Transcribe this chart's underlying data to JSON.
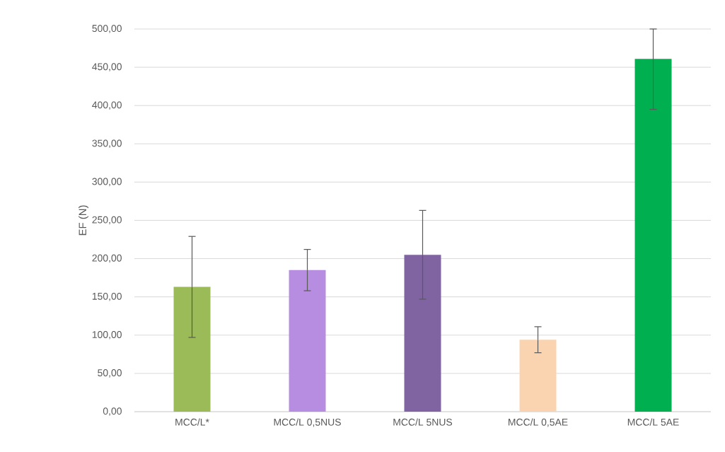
{
  "chart_data": {
    "type": "bar",
    "ylabel": "EF (N)",
    "categories": [
      "MCC/L*",
      "MCC/L 0,5NUS",
      "MCC/L 5NUS",
      "MCC/L 0,5AE",
      "MCC/L 5AE"
    ],
    "values": [
      163,
      185,
      205,
      94,
      461
    ],
    "colors": [
      "#9bbb59",
      "#b68de0",
      "#8064a2",
      "#fad4b0",
      "#00b050"
    ],
    "errors": [
      66,
      27,
      58,
      17,
      [
        395,
        500
      ]
    ],
    "ylim": [
      0,
      500
    ],
    "yticks": [
      {
        "value": 0,
        "label": "0,00"
      },
      {
        "value": 50,
        "label": "50,00"
      },
      {
        "value": 100,
        "label": "100,00"
      },
      {
        "value": 150,
        "label": "150,00"
      },
      {
        "value": 200,
        "label": "200,00"
      },
      {
        "value": 250,
        "label": "250,00"
      },
      {
        "value": 300,
        "label": "300,00"
      },
      {
        "value": 350,
        "label": "350,00"
      },
      {
        "value": 400,
        "label": "400,00"
      },
      {
        "value": 450,
        "label": "450,00"
      },
      {
        "value": 500,
        "label": "500,00"
      }
    ],
    "grid": "y"
  }
}
